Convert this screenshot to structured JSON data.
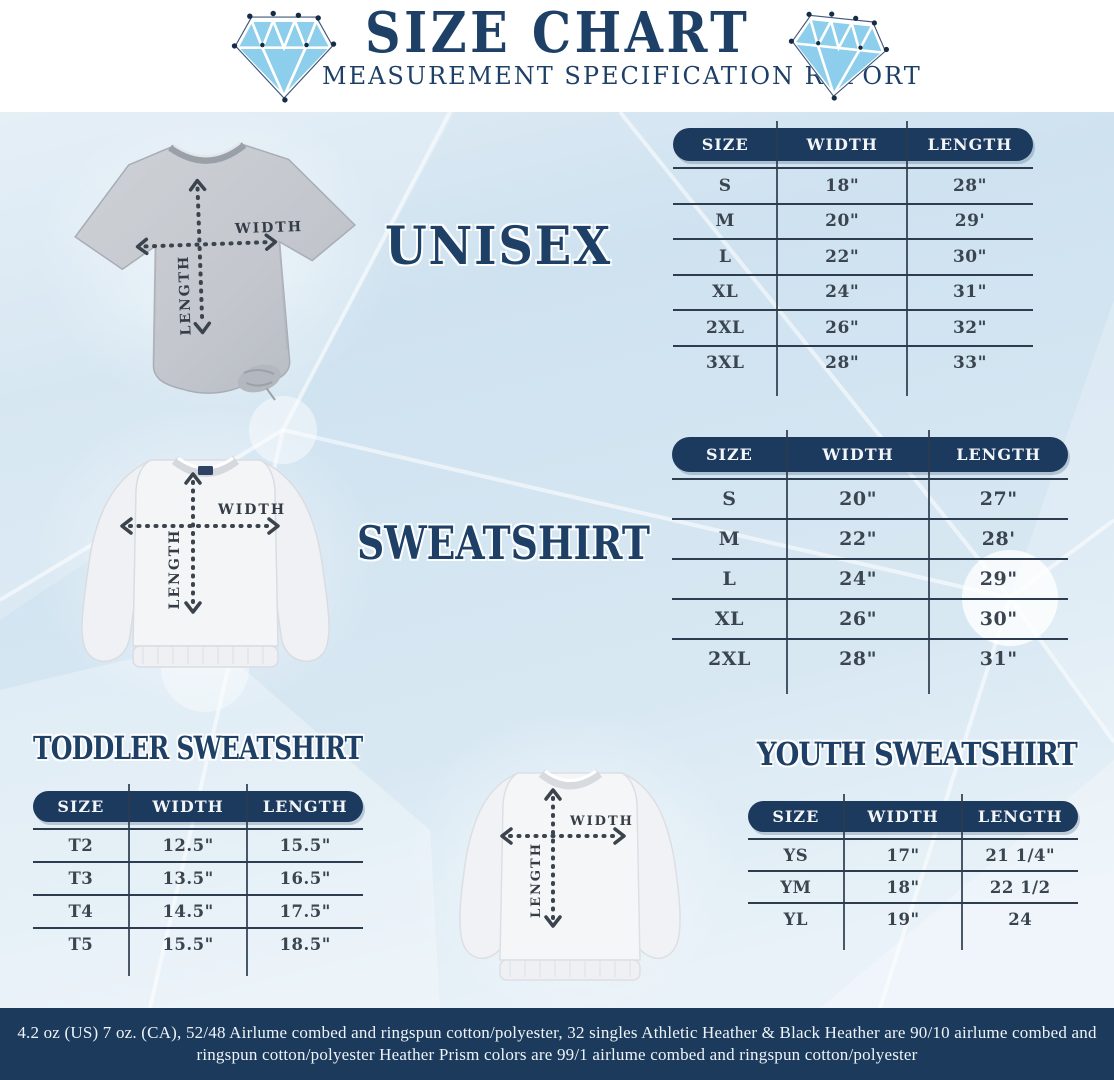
{
  "header": {
    "title": "SIZE CHART",
    "subtitle": "MEASUREMENT SPECIFICATION REPORT",
    "left_icon": "diamond-gem",
    "right_icon": "diamond-gem"
  },
  "sections": {
    "unisex": {
      "title": "UNISEX"
    },
    "sweatshirt": {
      "title": "SWEATSHIRT"
    },
    "toddler": {
      "title": "TODDLER SWEATSHIRT"
    },
    "youth": {
      "title": "YOUTH SWEATSHIRT"
    }
  },
  "tables": {
    "unisex": {
      "headers": [
        "SIZE",
        "WIDTH",
        "LENGTH"
      ],
      "rows": [
        [
          "S",
          "18\"",
          "28\""
        ],
        [
          "M",
          "20\"",
          "29'"
        ],
        [
          "L",
          "22\"",
          "30\""
        ],
        [
          "XL",
          "24\"",
          "31\""
        ],
        [
          "2XL",
          "26\"",
          "32\""
        ],
        [
          "3XL",
          "28\"",
          "33\""
        ]
      ]
    },
    "sweatshirt": {
      "headers": [
        "SIZE",
        "WIDTH",
        "LENGTH"
      ],
      "rows": [
        [
          "S",
          "20\"",
          "27\""
        ],
        [
          "M",
          "22\"",
          "28'"
        ],
        [
          "L",
          "24\"",
          "29\""
        ],
        [
          "XL",
          "26\"",
          "30\""
        ],
        [
          "2XL",
          "28\"",
          "31\""
        ]
      ]
    },
    "toddler": {
      "headers": [
        "SIZE",
        "WIDTH",
        "LENGTH"
      ],
      "rows": [
        [
          "T2",
          "12.5\"",
          "15.5\""
        ],
        [
          "T3",
          "13.5\"",
          "16.5\""
        ],
        [
          "T4",
          "14.5\"",
          "17.5\""
        ],
        [
          "T5",
          "15.5\"",
          "18.5\""
        ]
      ]
    },
    "youth": {
      "headers": [
        "SIZE",
        "WIDTH",
        "LENGTH"
      ],
      "rows": [
        [
          "YS",
          "17\"",
          "21 1/4\""
        ],
        [
          "YM",
          "18\"",
          "22 1/2"
        ],
        [
          "YL",
          "19\"",
          "24"
        ]
      ]
    }
  },
  "garment_arrows": {
    "width_label": "WIDTH",
    "length_label": "LENGTH"
  },
  "footer": {
    "line1": "4.2 oz (US) 7 oz. (CA), 52/48 Airlume combed and ringspun cotton/polyester, 32 singles Athletic Heather & Black Heather are 90/10 airlume combed and",
    "line2": "ringspun cotton/polyester Heather Prism colors are 99/1 airlume combed and ringspun cotton/polyester"
  },
  "colors": {
    "navy_header_pill": "#1c3a5e",
    "title_navy": "#1e4066",
    "table_line": "#2d3c4e",
    "cell_text": "#3a4550",
    "footer_bg": "#1b3a5c",
    "diamond_blue": "#8cceec",
    "background_top": "#e7f0f7",
    "background_mid": "#cfe2f0",
    "tshirt_gray": "#c3c7cd",
    "sweatshirt_white": "#f4f5f7"
  }
}
